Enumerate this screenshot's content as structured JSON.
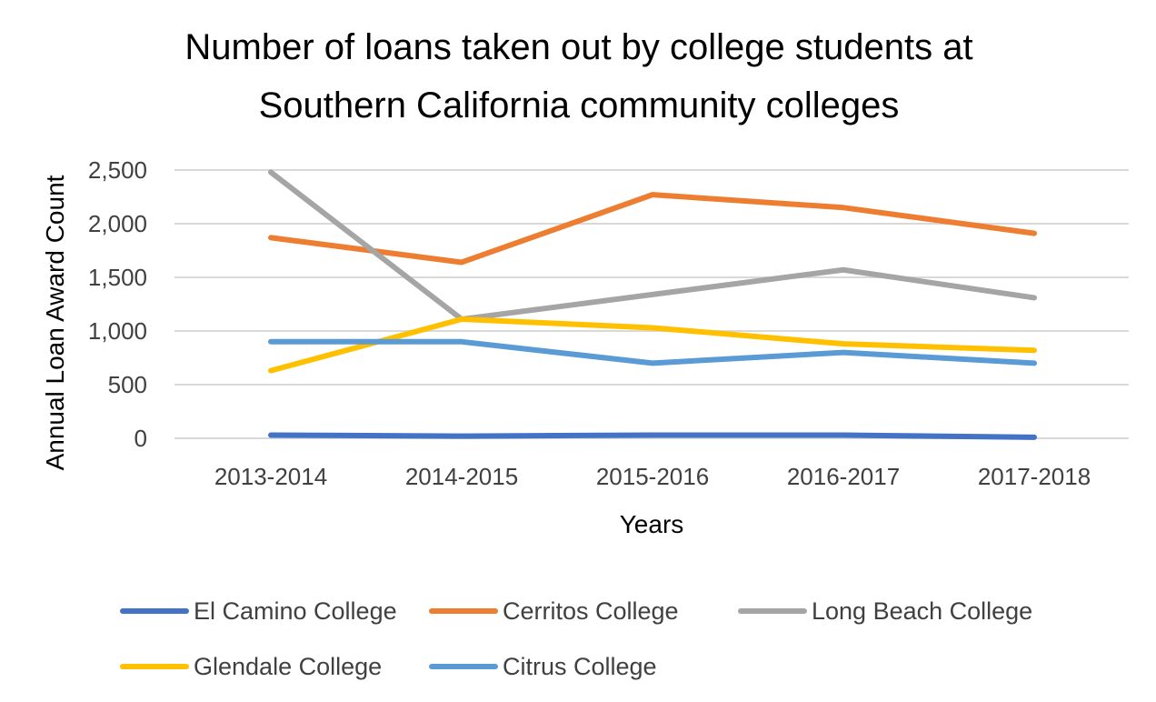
{
  "chart_data": {
    "type": "line",
    "title_lines": [
      "Number of loans taken out by college students at",
      "Southern California community colleges"
    ],
    "xlabel": "Years",
    "ylabel": "Annual Loan Award Count",
    "categories": [
      "2013-2014",
      "2014-2015",
      "2015-2016",
      "2016-2017",
      "2017-2018"
    ],
    "ylim": [
      0,
      2500
    ],
    "yticks": [
      0,
      500,
      1000,
      1500,
      2000,
      2500
    ],
    "ytick_labels": [
      "0",
      "500",
      "1,000",
      "1,500",
      "2,000",
      "2,500"
    ],
    "grid": true,
    "legend_position": "bottom",
    "series": [
      {
        "name": "El Camino College",
        "color": "#4472c4",
        "values": [
          30,
          20,
          30,
          30,
          10
        ]
      },
      {
        "name": "Cerritos College",
        "color": "#ed7d31",
        "values": [
          1870,
          1640,
          2270,
          2150,
          1910
        ]
      },
      {
        "name": "Long Beach College",
        "color": "#a5a5a5",
        "values": [
          2480,
          1110,
          1340,
          1570,
          1310
        ]
      },
      {
        "name": "Glendale College",
        "color": "#ffc000",
        "values": [
          630,
          1110,
          1030,
          880,
          820
        ]
      },
      {
        "name": "Citrus College",
        "color": "#5b9bd5",
        "values": [
          900,
          900,
          700,
          800,
          700
        ]
      }
    ]
  }
}
